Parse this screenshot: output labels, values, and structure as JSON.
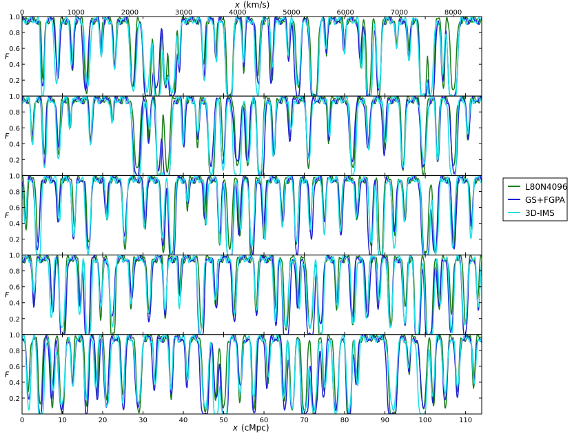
{
  "chart_data": {
    "type": "line",
    "panels": 5,
    "x_bottom": {
      "label_var": "x",
      "label_unit": "(cMpc)",
      "range": [
        0,
        114
      ],
      "ticks": [
        0,
        10,
        20,
        30,
        40,
        50,
        60,
        70,
        80,
        90,
        100,
        110
      ]
    },
    "x_top": {
      "label_var": "x",
      "label_unit": "(km/s)",
      "range": [
        0,
        8530
      ],
      "ticks": [
        0,
        1000,
        2000,
        3000,
        4000,
        5000,
        6000,
        7000,
        8000
      ]
    },
    "y": {
      "label": "F",
      "range": [
        0,
        1
      ],
      "ticks": [
        "0.2",
        "0.4",
        "0.6",
        "0.8",
        "1.0"
      ]
    },
    "legend": {
      "placement": "right",
      "entries": [
        {
          "name": "L80N4096",
          "color": "#1a7f1a"
        },
        {
          "name": "GS+FGPA",
          "color": "#1f1fd6"
        },
        {
          "name": "3D-IMS",
          "color": "#22e0e8"
        }
      ]
    },
    "series": [
      {
        "name": "L80N4096",
        "color": "#1a7f1a"
      },
      {
        "name": "GS+FGPA",
        "color": "#1f1fd6"
      },
      {
        "name": "3D-IMS",
        "color": "#22e0e8"
      }
    ],
    "absorption_lines": [
      [
        [
          5.2,
          0.85,
          0.28
        ],
        [
          8.8,
          0.75,
          0.35
        ],
        [
          12.5,
          0.6,
          0.3
        ],
        [
          16,
          0.85,
          0.4
        ],
        [
          19.5,
          0.45,
          0.25
        ],
        [
          23,
          0.6,
          0.3
        ],
        [
          27.5,
          0.85,
          0.45
        ],
        [
          31,
          0.98,
          0.55
        ],
        [
          33.5,
          1.0,
          0.5
        ],
        [
          35.5,
          0.92,
          0.35
        ],
        [
          37.2,
          0.98,
          0.5
        ],
        [
          39,
          0.6,
          0.25
        ],
        [
          45,
          0.7,
          0.3
        ],
        [
          48,
          0.5,
          0.25
        ],
        [
          51.5,
          1.0,
          0.45
        ],
        [
          55,
          0.6,
          0.25
        ],
        [
          58.5,
          0.85,
          0.35
        ],
        [
          62,
          0.7,
          0.3
        ],
        [
          66,
          0.5,
          0.25
        ],
        [
          68.5,
          0.95,
          0.45
        ],
        [
          72.5,
          1.0,
          0.5
        ],
        [
          75.5,
          0.4,
          0.25
        ],
        [
          80,
          0.45,
          0.25
        ],
        [
          84,
          0.6,
          0.3
        ],
        [
          86,
          1.0,
          0.4
        ],
        [
          88.5,
          0.95,
          0.35
        ],
        [
          93,
          0.35,
          0.25
        ],
        [
          96,
          0.5,
          0.3
        ],
        [
          99.5,
          1.0,
          0.5
        ],
        [
          101.5,
          1.0,
          0.45
        ],
        [
          104.5,
          0.75,
          0.3
        ],
        [
          107,
          1.0,
          0.55
        ]
      ],
      [
        [
          2.5,
          0.5,
          0.3
        ],
        [
          5.5,
          0.8,
          0.3
        ],
        [
          9,
          0.7,
          0.35
        ],
        [
          12,
          0.35,
          0.25
        ],
        [
          17,
          0.5,
          0.3
        ],
        [
          22.5,
          0.3,
          0.25
        ],
        [
          28.5,
          1.0,
          0.55
        ],
        [
          31.5,
          0.45,
          0.3
        ],
        [
          34,
          0.95,
          0.4
        ],
        [
          36,
          0.98,
          0.5
        ],
        [
          40,
          0.6,
          0.25
        ],
        [
          43.5,
          0.55,
          0.3
        ],
        [
          47,
          0.9,
          0.45
        ],
        [
          50,
          0.8,
          0.35
        ],
        [
          53.5,
          0.95,
          0.5
        ],
        [
          56,
          0.8,
          0.35
        ],
        [
          59,
          1.0,
          0.45
        ],
        [
          62.5,
          0.7,
          0.3
        ],
        [
          66.5,
          0.5,
          0.3
        ],
        [
          71,
          0.8,
          0.35
        ],
        [
          76,
          0.55,
          0.25
        ],
        [
          82,
          0.9,
          0.45
        ],
        [
          86,
          0.7,
          0.35
        ],
        [
          90,
          0.6,
          0.3
        ],
        [
          94.5,
          0.85,
          0.35
        ],
        [
          99.5,
          0.95,
          0.45
        ],
        [
          103,
          0.75,
          0.3
        ],
        [
          107,
          0.95,
          0.45
        ],
        [
          110.5,
          0.55,
          0.3
        ]
      ],
      [
        [
          1,
          0.6,
          0.3
        ],
        [
          4,
          0.92,
          0.35
        ],
        [
          9,
          0.5,
          0.3
        ],
        [
          13,
          0.7,
          0.3
        ],
        [
          16.5,
          0.95,
          0.4
        ],
        [
          21,
          0.5,
          0.3
        ],
        [
          25.5,
          0.8,
          0.35
        ],
        [
          30.5,
          0.6,
          0.3
        ],
        [
          35,
          0.85,
          0.35
        ],
        [
          37,
          0.95,
          0.4
        ],
        [
          41,
          0.4,
          0.25
        ],
        [
          45.5,
          0.55,
          0.25
        ],
        [
          49,
          0.8,
          0.3
        ],
        [
          51.5,
          0.98,
          0.45
        ],
        [
          54,
          0.7,
          0.3
        ],
        [
          57,
          0.9,
          0.35
        ],
        [
          60,
          0.7,
          0.3
        ],
        [
          64.5,
          0.6,
          0.3
        ],
        [
          68,
          0.9,
          0.35
        ],
        [
          71.5,
          0.75,
          0.3
        ],
        [
          75,
          0.6,
          0.3
        ],
        [
          79,
          0.7,
          0.3
        ],
        [
          83,
          0.55,
          0.3
        ],
        [
          86.5,
          0.85,
          0.35
        ],
        [
          89,
          0.95,
          0.4
        ],
        [
          92.5,
          0.8,
          0.35
        ],
        [
          95,
          0.6,
          0.3
        ],
        [
          100,
          1.0,
          0.5
        ],
        [
          102.5,
          0.9,
          0.4
        ],
        [
          107,
          0.8,
          0.35
        ],
        [
          111.5,
          0.7,
          0.3
        ]
      ],
      [
        [
          3,
          0.55,
          0.3
        ],
        [
          7.5,
          0.7,
          0.3
        ],
        [
          10,
          0.98,
          0.4
        ],
        [
          14.5,
          0.65,
          0.3
        ],
        [
          16.3,
          1.0,
          0.35
        ],
        [
          19.5,
          0.7,
          0.3
        ],
        [
          22.5,
          0.92,
          0.4
        ],
        [
          27,
          0.6,
          0.3
        ],
        [
          31.5,
          0.8,
          0.35
        ],
        [
          35.5,
          0.7,
          0.3
        ],
        [
          39,
          0.55,
          0.25
        ],
        [
          44.5,
          0.95,
          0.4
        ],
        [
          48,
          0.6,
          0.3
        ],
        [
          52.5,
          0.8,
          0.35
        ],
        [
          58,
          0.65,
          0.3
        ],
        [
          63,
          0.75,
          0.3
        ],
        [
          65.5,
          0.98,
          0.45
        ],
        [
          68.5,
          0.7,
          0.3
        ],
        [
          71.5,
          1.0,
          0.5
        ],
        [
          74,
          0.95,
          0.4
        ],
        [
          78,
          0.6,
          0.3
        ],
        [
          82,
          0.8,
          0.35
        ],
        [
          85.5,
          0.75,
          0.35
        ],
        [
          88.5,
          0.55,
          0.3
        ],
        [
          91.5,
          0.8,
          0.35
        ],
        [
          95,
          0.75,
          0.35
        ],
        [
          98,
          0.9,
          0.4
        ],
        [
          101,
          1.0,
          0.5
        ],
        [
          103.5,
          0.7,
          0.3
        ],
        [
          106.5,
          0.85,
          0.35
        ],
        [
          110,
          0.9,
          0.4
        ],
        [
          113,
          0.6,
          0.3
        ]
      ],
      [
        [
          1.5,
          0.8,
          0.35
        ],
        [
          4.5,
          0.95,
          0.4
        ],
        [
          7.5,
          0.8,
          0.35
        ],
        [
          10,
          1.0,
          0.45
        ],
        [
          12.5,
          0.7,
          0.3
        ],
        [
          16,
          0.85,
          0.35
        ],
        [
          18.5,
          0.7,
          0.3
        ],
        [
          21,
          0.9,
          0.4
        ],
        [
          25,
          0.8,
          0.35
        ],
        [
          29,
          0.95,
          0.45
        ],
        [
          33,
          0.6,
          0.3
        ],
        [
          37,
          0.7,
          0.3
        ],
        [
          41,
          0.6,
          0.3
        ],
        [
          45.5,
          1.0,
          0.5
        ],
        [
          48,
          0.9,
          0.4
        ],
        [
          50,
          1.0,
          0.45
        ],
        [
          54,
          0.75,
          0.35
        ],
        [
          57.5,
          0.85,
          0.35
        ],
        [
          61,
          0.6,
          0.3
        ],
        [
          65,
          0.85,
          0.35
        ],
        [
          67,
          0.95,
          0.4
        ],
        [
          70,
          1.0,
          0.5
        ],
        [
          72.5,
          0.95,
          0.45
        ],
        [
          75,
          0.7,
          0.35
        ],
        [
          78,
          0.85,
          0.4
        ],
        [
          81,
          0.9,
          0.4
        ],
        [
          83,
          0.6,
          0.3
        ],
        [
          92,
          1.0,
          0.6
        ],
        [
          96,
          0.4,
          0.3
        ],
        [
          99.5,
          1.0,
          0.55
        ],
        [
          102,
          0.8,
          0.35
        ],
        [
          105,
          0.85,
          0.4
        ],
        [
          108,
          0.7,
          0.35
        ],
        [
          112,
          0.6,
          0.3
        ]
      ]
    ]
  }
}
